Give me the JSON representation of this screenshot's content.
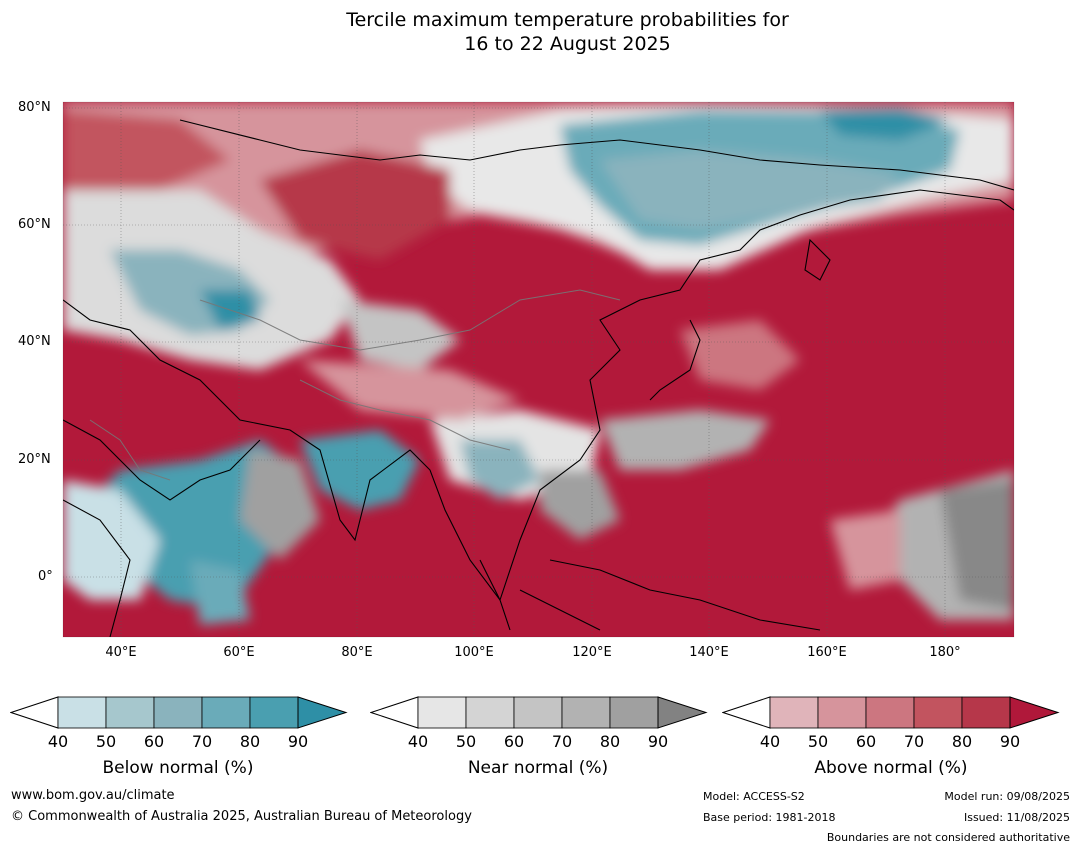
{
  "title_line1": "Tercile maximum temperature probabilities for",
  "title_line2": "16 to 22 August 2025",
  "lat_labels": [
    "80°N",
    "60°N",
    "40°N",
    "20°N",
    "0°"
  ],
  "lon_labels": [
    "40°E",
    "60°E",
    "80°E",
    "100°E",
    "120°E",
    "140°E",
    "160°E",
    "180°"
  ],
  "colorbars": [
    {
      "title": "Below normal (%)",
      "ticks": [
        "40",
        "50",
        "60",
        "70",
        "80",
        "90"
      ],
      "colors": [
        "#ffffff",
        "#c9e0e6",
        "#a6c7cd",
        "#8ab3bd",
        "#6aabb9",
        "#4a9fb0",
        "#2e8fa6"
      ]
    },
    {
      "title": "Near normal (%)",
      "ticks": [
        "40",
        "50",
        "60",
        "70",
        "80",
        "90"
      ],
      "colors": [
        "#ffffff",
        "#e6e6e6",
        "#d4d4d4",
        "#c4c4c4",
        "#b2b2b2",
        "#a0a0a0",
        "#828282"
      ]
    },
    {
      "title": "Above normal (%)",
      "ticks": [
        "40",
        "50",
        "60",
        "70",
        "80",
        "90"
      ],
      "colors": [
        "#ffffff",
        "#e0b4ba",
        "#d6949c",
        "#cc7680",
        "#c2545f",
        "#b6374a",
        "#b0183a"
      ]
    }
  ],
  "footer": {
    "website": "www.bom.gov.au/climate",
    "copyright": "© Commonwealth of Australia 2025, Australian Bureau of Meteorology",
    "model": "Model: ACCESS-S2",
    "base_period": "Base period: 1981-2018",
    "model_run": "Model run: 09/08/2025",
    "issued": "Issued: 11/08/2025",
    "disclaimer": "Boundaries are not considered authoritative"
  }
}
